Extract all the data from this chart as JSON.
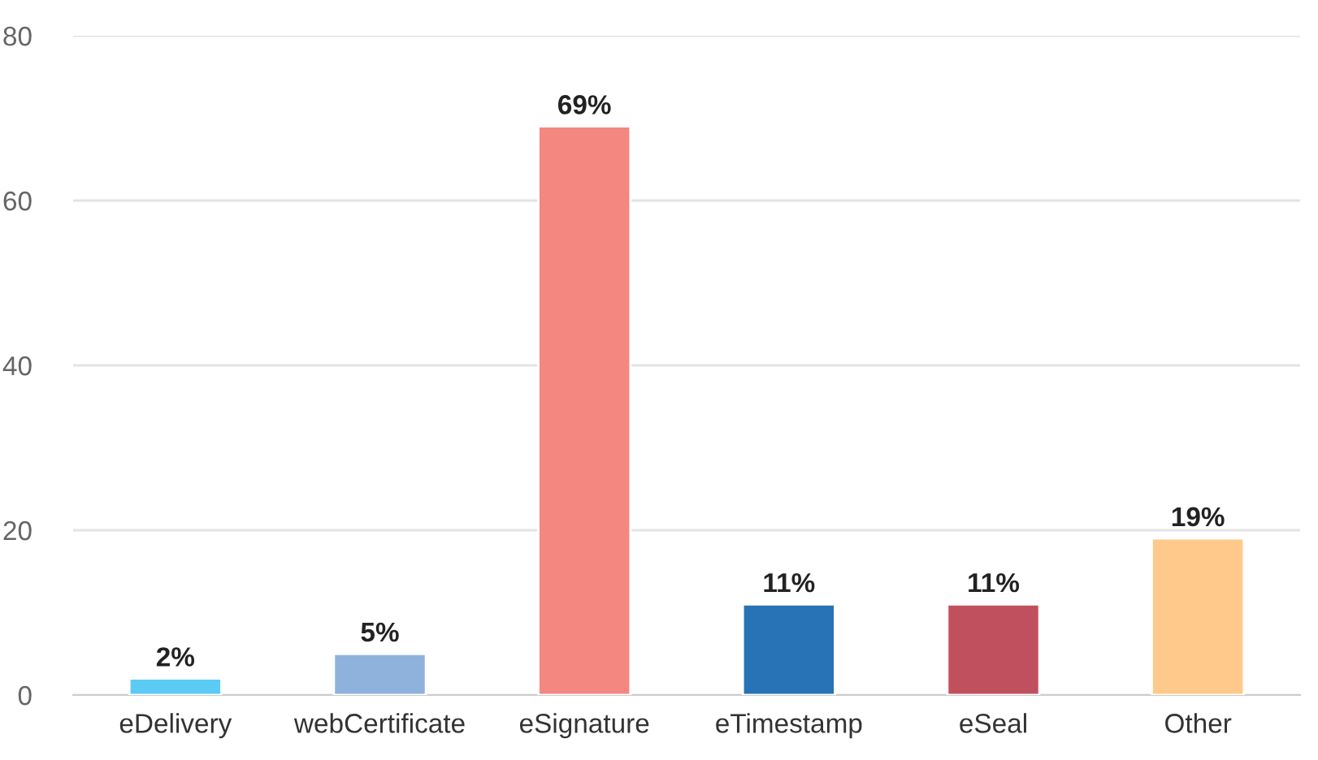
{
  "chart_data": {
    "type": "bar",
    "categories": [
      "eDelivery",
      "webCertificate",
      "eSignature",
      "eTimestamp",
      "eSeal",
      "Other"
    ],
    "values": [
      2,
      5,
      69,
      11,
      11,
      19
    ],
    "colors": [
      "#5bcbf5",
      "#8eb2dc",
      "#f4877f",
      "#2872b6",
      "#c1505f",
      "#fec98a"
    ],
    "value_labels": [
      "2%",
      "5%",
      "69%",
      "11%",
      "11%",
      "19%"
    ],
    "ylim": [
      0,
      80
    ],
    "yticks": [
      0,
      20,
      40,
      60,
      80
    ],
    "grid": "y",
    "legend": false
  }
}
